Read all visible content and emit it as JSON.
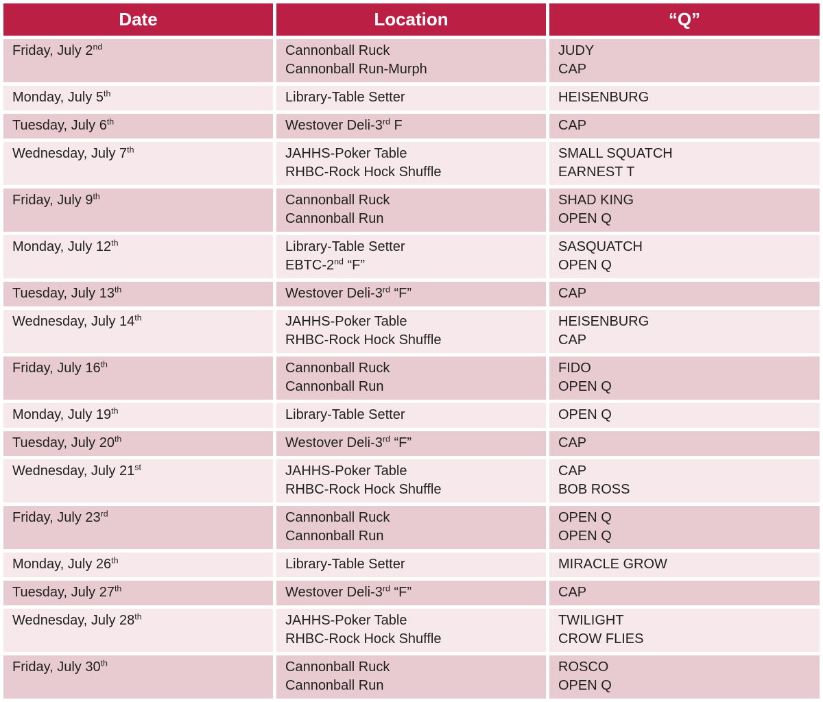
{
  "colors": {
    "header_bg": "#BB2044",
    "header_text": "#FFFFFF",
    "row_dark": "#E8CBD0",
    "row_light": "#F7E8EB",
    "gap": "#FFFFFF",
    "body_text": "#1F1F1F"
  },
  "table": {
    "columns": [
      {
        "label": "Date"
      },
      {
        "label": "Location"
      },
      {
        "label": "“Q”"
      }
    ],
    "rows": [
      {
        "date": [
          [
            "Friday, July 2",
            {
              "sup": "nd"
            }
          ]
        ],
        "location": [
          [
            "Cannonball Ruck"
          ],
          [
            "Cannonball Run-Murph"
          ]
        ],
        "q": [
          [
            "JUDY"
          ],
          [
            "CAP"
          ]
        ]
      },
      {
        "date": [
          [
            "Monday, July 5",
            {
              "sup": "th"
            }
          ]
        ],
        "location": [
          [
            "Library-Table Setter"
          ]
        ],
        "q": [
          [
            "HEISENBURG"
          ]
        ]
      },
      {
        "date": [
          [
            "Tuesday, July 6",
            {
              "sup": "th"
            }
          ]
        ],
        "location": [
          [
            "Westover Deli-3",
            {
              "sup": "rd"
            },
            " F"
          ]
        ],
        "q": [
          [
            "CAP"
          ]
        ]
      },
      {
        "date": [
          [
            "Wednesday, July 7",
            {
              "sup": "th"
            }
          ]
        ],
        "location": [
          [
            "JAHHS-Poker Table"
          ],
          [
            "RHBC-Rock Hock Shuffle"
          ]
        ],
        "q": [
          [
            "SMALL SQUATCH"
          ],
          [
            "EARNEST T"
          ]
        ]
      },
      {
        "date": [
          [
            "Friday, July 9",
            {
              "sup": "th"
            }
          ]
        ],
        "location": [
          [
            "Cannonball Ruck"
          ],
          [
            "Cannonball Run"
          ]
        ],
        "q": [
          [
            "SHAD KING"
          ],
          [
            "OPEN Q"
          ]
        ]
      },
      {
        "date": [
          [
            "Monday, July 12",
            {
              "sup": "th"
            }
          ]
        ],
        "location": [
          [
            "Library-Table Setter"
          ],
          [
            "EBTC-2",
            {
              "sup": "nd"
            },
            " “F”"
          ]
        ],
        "q": [
          [
            "SASQUATCH"
          ],
          [
            "OPEN Q"
          ]
        ]
      },
      {
        "date": [
          [
            "Tuesday, July 13",
            {
              "sup": "th"
            }
          ]
        ],
        "location": [
          [
            "Westover Deli-3",
            {
              "sup": "rd"
            },
            " “F”"
          ]
        ],
        "q": [
          [
            "CAP"
          ]
        ]
      },
      {
        "date": [
          [
            "Wednesday, July 14",
            {
              "sup": "th"
            }
          ]
        ],
        "location": [
          [
            "JAHHS-Poker Table"
          ],
          [
            "RHBC-Rock Hock Shuffle"
          ]
        ],
        "q": [
          [
            "HEISENBURG"
          ],
          [
            "CAP"
          ]
        ]
      },
      {
        "date": [
          [
            "Friday, July 16",
            {
              "sup": "th"
            }
          ]
        ],
        "location": [
          [
            "Cannonball Ruck"
          ],
          [
            "Cannonball Run"
          ]
        ],
        "q": [
          [
            "FIDO"
          ],
          [
            "OPEN Q"
          ]
        ]
      },
      {
        "date": [
          [
            "Monday, July 19",
            {
              "sup": "th"
            }
          ]
        ],
        "location": [
          [
            "Library-Table Setter"
          ]
        ],
        "q": [
          [
            "OPEN Q"
          ]
        ]
      },
      {
        "date": [
          [
            "Tuesday, July 20",
            {
              "sup": "th"
            }
          ]
        ],
        "location": [
          [
            "Westover Deli-3",
            {
              "sup": "rd"
            },
            " “F”"
          ]
        ],
        "q": [
          [
            "CAP"
          ]
        ]
      },
      {
        "date": [
          [
            "Wednesday, July 21",
            {
              "sup": "st"
            }
          ]
        ],
        "location": [
          [
            "JAHHS-Poker Table"
          ],
          [
            "RHBC-Rock Hock Shuffle"
          ]
        ],
        "q": [
          [
            "CAP"
          ],
          [
            "BOB ROSS"
          ]
        ]
      },
      {
        "date": [
          [
            "Friday, July 23",
            {
              "sup": "rd"
            }
          ]
        ],
        "location": [
          [
            "Cannonball Ruck"
          ],
          [
            "Cannonball Run"
          ]
        ],
        "q": [
          [
            "OPEN Q"
          ],
          [
            "OPEN Q"
          ]
        ]
      },
      {
        "date": [
          [
            "Monday, July 26",
            {
              "sup": "th"
            }
          ]
        ],
        "location": [
          [
            "Library-Table Setter"
          ]
        ],
        "q": [
          [
            "MIRACLE GROW"
          ]
        ]
      },
      {
        "date": [
          [
            "Tuesday, July 27",
            {
              "sup": "th"
            }
          ]
        ],
        "location": [
          [
            "Westover Deli-3",
            {
              "sup": "rd"
            },
            " “F”"
          ]
        ],
        "q": [
          [
            "CAP"
          ]
        ]
      },
      {
        "date": [
          [
            "Wednesday, July 28",
            {
              "sup": "th"
            }
          ]
        ],
        "location": [
          [
            "JAHHS-Poker Table"
          ],
          [
            "RHBC-Rock Hock Shuffle"
          ]
        ],
        "q": [
          [
            "TWILIGHT"
          ],
          [
            "CROW FLIES"
          ]
        ]
      },
      {
        "date": [
          [
            "Friday, July 30",
            {
              "sup": "th"
            }
          ]
        ],
        "location": [
          [
            "Cannonball Ruck"
          ],
          [
            "Cannonball Run"
          ]
        ],
        "q": [
          [
            "ROSCO"
          ],
          [
            "OPEN Q"
          ]
        ]
      }
    ]
  }
}
